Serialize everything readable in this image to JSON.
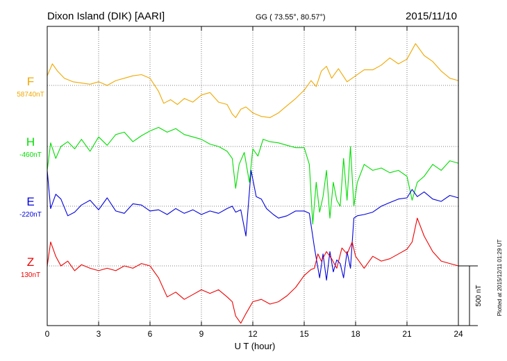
{
  "header": {
    "station": "Dixon Island (DIK)  [AARI]",
    "coords": "GG ( 73.55°,  80.57°)",
    "date": "2015/11/10"
  },
  "side_note": "Plotted at 2015/12/11 01:29 UT",
  "chart_data": {
    "type": "line",
    "xlabel": "U T (hour)",
    "xlim": [
      0,
      24
    ],
    "xticks": [
      0,
      3,
      6,
      9,
      12,
      15,
      18,
      21,
      24
    ],
    "grid": true,
    "scale_bar": "500 nT",
    "series": [
      {
        "name": "F",
        "baseline_label": "58740nT",
        "color": "#f0a800",
        "x": [
          0,
          0.3,
          0.6,
          1,
          1.5,
          2,
          2.5,
          3,
          3.5,
          4,
          4.5,
          5,
          5.5,
          6,
          6.5,
          6.8,
          7.2,
          7.6,
          8,
          8.5,
          9,
          9.5,
          10,
          10.5,
          10.8,
          11,
          11.3,
          11.6,
          12,
          12.5,
          13,
          13.5,
          14,
          14.5,
          15,
          15.4,
          15.7,
          16,
          16.3,
          16.6,
          17,
          17.5,
          18,
          18.5,
          19,
          19.5,
          20,
          20.5,
          21,
          21.5,
          22,
          22.5,
          23,
          23.5,
          24
        ],
        "y": [
          80,
          180,
          120,
          60,
          30,
          20,
          10,
          30,
          0,
          40,
          60,
          80,
          90,
          60,
          -50,
          -150,
          -120,
          -160,
          -110,
          -140,
          -80,
          -60,
          -140,
          -160,
          -240,
          -270,
          -200,
          -180,
          -230,
          -260,
          -270,
          -230,
          -170,
          -110,
          -40,
          40,
          -10,
          120,
          160,
          60,
          140,
          30,
          80,
          130,
          130,
          170,
          230,
          180,
          220,
          350,
          250,
          200,
          120,
          60,
          40
        ]
      },
      {
        "name": "H",
        "baseline_label": "-460nT",
        "color": "#00dd00",
        "x": [
          0,
          0.2,
          0.5,
          0.8,
          1.2,
          1.6,
          2,
          2.5,
          3,
          3.5,
          4,
          4.5,
          5,
          5.5,
          6,
          6.5,
          7,
          7.5,
          8,
          8.5,
          9,
          9.5,
          10,
          10.5,
          10.8,
          11,
          11.2,
          11.5,
          11.8,
          12,
          12.3,
          12.6,
          13,
          13.5,
          14,
          14.5,
          15,
          15.3,
          15.5,
          15.7,
          15.9,
          16.1,
          16.3,
          16.5,
          16.7,
          16.9,
          17.1,
          17.3,
          17.5,
          17.7,
          17.9,
          18.1,
          18.5,
          19,
          19.5,
          20,
          20.5,
          21,
          21.3,
          21.6,
          22,
          22.5,
          23,
          23.5,
          24
        ],
        "y": [
          -200,
          30,
          -100,
          0,
          40,
          -20,
          60,
          -40,
          80,
          10,
          100,
          120,
          40,
          90,
          130,
          160,
          120,
          150,
          100,
          80,
          60,
          20,
          0,
          -40,
          -100,
          -350,
          -150,
          -50,
          -300,
          -20,
          -80,
          60,
          40,
          30,
          10,
          -10,
          -10,
          -150,
          -650,
          -300,
          -550,
          -420,
          -200,
          -600,
          -300,
          -450,
          -500,
          -100,
          -450,
          0,
          -500,
          -300,
          -150,
          -200,
          -180,
          -220,
          -200,
          -250,
          -450,
          -300,
          -250,
          -150,
          -200,
          -120,
          -140
        ]
      },
      {
        "name": "E",
        "baseline_label": "-220nT",
        "color": "#0000dd",
        "x": [
          0,
          0.2,
          0.5,
          0.8,
          1.2,
          1.6,
          2,
          2.5,
          3,
          3.5,
          4,
          4.5,
          5,
          5.5,
          6,
          6.5,
          7,
          7.5,
          8,
          8.5,
          9,
          9.5,
          10,
          10.5,
          10.8,
          11,
          11.3,
          11.6,
          11.9,
          12.2,
          12.5,
          12.8,
          13.2,
          13.5,
          14,
          14.5,
          15,
          15.3,
          15.6,
          15.9,
          16.1,
          16.3,
          16.5,
          16.7,
          16.9,
          17.1,
          17.3,
          17.5,
          17.7,
          17.9,
          18.1,
          18.5,
          19,
          19.5,
          20,
          20.5,
          21,
          21.3,
          21.6,
          22,
          22.5,
          23,
          23.5,
          24
        ],
        "y": [
          300,
          -20,
          100,
          60,
          -80,
          -50,
          10,
          50,
          -30,
          70,
          -40,
          -60,
          20,
          10,
          -40,
          -30,
          -70,
          -20,
          -60,
          -30,
          -70,
          -40,
          -60,
          -20,
          0,
          -50,
          -30,
          -250,
          300,
          80,
          60,
          -20,
          -70,
          -100,
          -80,
          -40,
          -40,
          -60,
          -350,
          -600,
          -400,
          -620,
          -380,
          -550,
          -450,
          -480,
          -600,
          -380,
          -520,
          -100,
          -80,
          -70,
          -50,
          0,
          30,
          60,
          70,
          140,
          80,
          120,
          60,
          40,
          90,
          70
        ]
      },
      {
        "name": "Z",
        "baseline_label": "130nT",
        "color": "#ee0000",
        "x": [
          0,
          0.2,
          0.5,
          0.8,
          1.2,
          1.6,
          2,
          2.5,
          3,
          3.5,
          4,
          4.5,
          5,
          5.5,
          6,
          6.5,
          7,
          7.5,
          8,
          8.5,
          9,
          9.5,
          10,
          10.5,
          10.8,
          11,
          11.3,
          11.6,
          12,
          12.5,
          13,
          13.5,
          14,
          14.5,
          15,
          15.4,
          15.6,
          15.8,
          16,
          16.3,
          16.6,
          16.9,
          17.2,
          17.5,
          17.8,
          18,
          18.5,
          19,
          19.5,
          20,
          20.5,
          21,
          21.3,
          21.6,
          22,
          22.5,
          23,
          23.5,
          24
        ],
        "y": [
          0,
          200,
          80,
          0,
          40,
          -40,
          10,
          -20,
          -40,
          -20,
          -40,
          0,
          -20,
          20,
          0,
          -100,
          -260,
          -220,
          -280,
          -240,
          -200,
          -230,
          -200,
          -260,
          -300,
          -420,
          -480,
          -400,
          -300,
          -280,
          -320,
          -300,
          -250,
          -180,
          -80,
          -30,
          -20,
          100,
          40,
          120,
          60,
          -20,
          150,
          100,
          200,
          80,
          -20,
          80,
          40,
          60,
          100,
          140,
          200,
          400,
          250,
          120,
          40,
          20,
          0
        ]
      }
    ]
  }
}
